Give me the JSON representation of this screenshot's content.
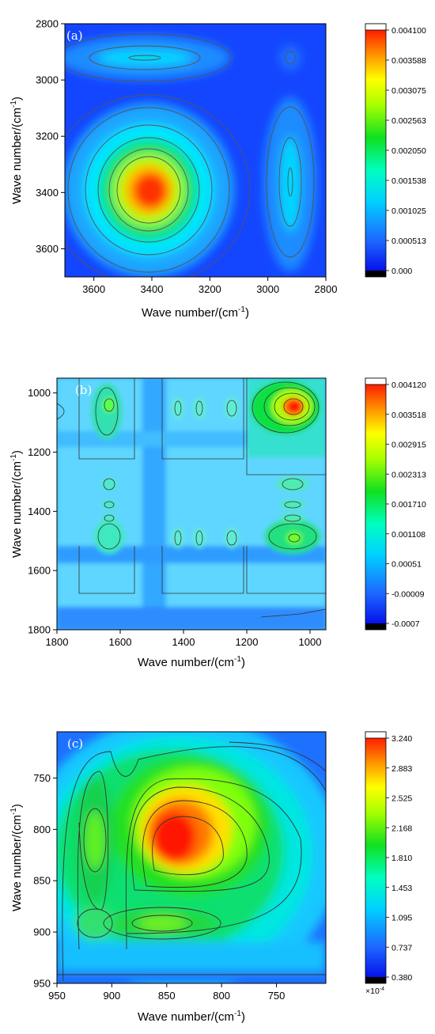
{
  "chart_data": [
    {
      "type": "heatmap",
      "panel_label": "(a)",
      "xlabel": "Wave number/(cm",
      "ylabel": "Wave number/(cm",
      "label_sup": "-1",
      "label_close": ")",
      "xlim": [
        3700,
        2800
      ],
      "ylim": [
        2800,
        3700
      ],
      "xticks": [
        3600,
        3400,
        3200,
        3000,
        2800
      ],
      "yticks": [
        2800,
        3000,
        3200,
        3400,
        3600
      ],
      "colorbar_ticks": [
        "0.004100",
        "0.003588",
        "0.003075",
        "0.002563",
        "0.002050",
        "0.001538",
        "0.001025",
        "0.000513",
        "0.000"
      ],
      "colorbar_multiplier": "",
      "peaks": [
        {
          "x": 3385,
          "y": 3385,
          "value": 0.0041
        },
        {
          "x": 3385,
          "y": 2920,
          "value": 0.0013
        },
        {
          "x": 2920,
          "y": 3385,
          "value": 0.0013
        },
        {
          "x": 2920,
          "y": 2920,
          "value": 0.0009
        }
      ],
      "vmin": 0.0,
      "vmax": 0.0041
    },
    {
      "type": "heatmap",
      "panel_label": "(b)",
      "xlabel": "Wave number/(cm",
      "ylabel": "Wave number/(cm",
      "label_sup": "-1",
      "label_close": ")",
      "xlim": [
        1800,
        950
      ],
      "ylim": [
        950,
        1800
      ],
      "xticks": [
        1800,
        1600,
        1400,
        1200,
        1000
      ],
      "yticks": [
        1000,
        1200,
        1400,
        1600,
        1800
      ],
      "colorbar_ticks": [
        "0.004120",
        "0.003518",
        "0.002915",
        "0.002313",
        "0.001710",
        "0.001108",
        "0.00051",
        "-0.00009",
        "-0.0007"
      ],
      "colorbar_multiplier": "",
      "peaks": [
        {
          "x": 1050,
          "y": 1050,
          "value": 0.00412
        },
        {
          "x": 1650,
          "y": 1650,
          "value": 0.0016
        },
        {
          "x": 1650,
          "y": 1050,
          "value": 0.0018
        },
        {
          "x": 1050,
          "y": 1650,
          "value": 0.0018
        }
      ],
      "vmin": -0.0007,
      "vmax": 0.00412
    },
    {
      "type": "heatmap",
      "panel_label": "(c)",
      "xlabel": "Wave number/(cm",
      "ylabel": "Wave number/(cm",
      "label_sup": "-1",
      "label_close": ")",
      "xlim": [
        950,
        705
      ],
      "ylim": [
        705,
        950
      ],
      "xticks": [
        950,
        900,
        850,
        800,
        750
      ],
      "yticks": [
        750,
        800,
        850,
        900,
        950
      ],
      "colorbar_ticks": [
        "3.240",
        "2.883",
        "2.525",
        "2.168",
        "1.810",
        "1.453",
        "1.095",
        "0.737",
        "0.380"
      ],
      "colorbar_multiplier": "×10",
      "colorbar_multiplier_sup": "-4",
      "peaks": [
        {
          "x": 850,
          "y": 850,
          "value": 3.24
        },
        {
          "x": 920,
          "y": 850,
          "value": 2.0
        },
        {
          "x": 850,
          "y": 920,
          "value": 2.0
        },
        {
          "x": 920,
          "y": 920,
          "value": 1.7
        }
      ],
      "vmin": 0.38,
      "vmax": 3.24
    }
  ]
}
